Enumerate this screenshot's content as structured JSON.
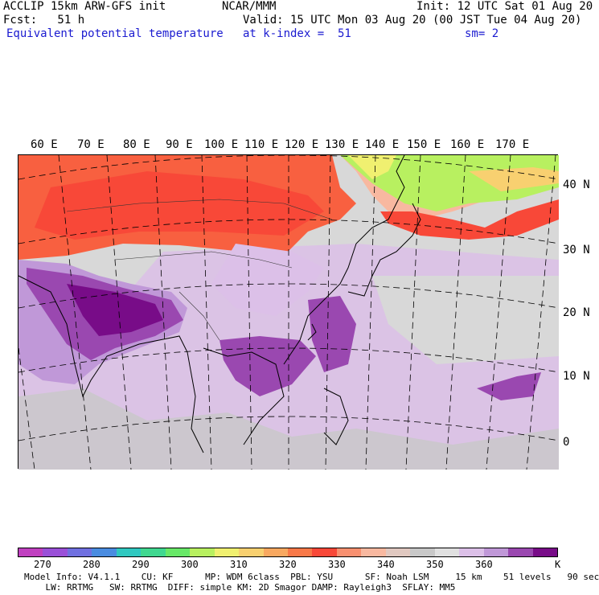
{
  "header": {
    "model": "ACCLIP 15km ARW-GFS init",
    "org": "NCAR/MMM",
    "init": "Init: 12 UTC Sat 01 Aug 20",
    "fcst": "Fcst:   51 h",
    "valid": "Valid: 15 UTC Mon 03 Aug 20 (00 JST Tue 04 Aug 20)",
    "field": "Equivalent potential temperature",
    "level": "at k-index =  51",
    "smooth": "sm= 2"
  },
  "longitude_labels": [
    "60 E",
    "70 E",
    "80 E",
    "90 E",
    "100 E",
    "110 E",
    "120 E",
    "130 E",
    "140 E",
    "150 E",
    "160 E",
    "170 E"
  ],
  "latitude_labels": [
    "40 N",
    "30 N",
    "20 N",
    "10 N",
    "0"
  ],
  "colorbar": {
    "unit": "K",
    "ticks": [
      "270",
      "280",
      "290",
      "300",
      "310",
      "320",
      "330",
      "340",
      "350",
      "360"
    ],
    "colors": [
      "#c040c0",
      "#9a50d8",
      "#7070e0",
      "#4a8ce0",
      "#30c8c0",
      "#40d890",
      "#68e868",
      "#b8f060",
      "#f0f070",
      "#f8d070",
      "#f8a860",
      "#f87848",
      "#f84838",
      "#f89070",
      "#f8b8a0",
      "#e0c8c0",
      "#c8c8c8",
      "#e0e0e0",
      "#dcc0e8",
      "#c098d8",
      "#9a48b0",
      "#780c88"
    ]
  },
  "footer": {
    "line1": "Model Info: V4.1.1    CU: KF      MP: WDM 6class  PBL: YSU      SF: Noah LSM     15 km    51 levels   90 sec",
    "line2": "    LW: RRTMG   SW: RRTMG  DIFF: simple KM: 2D Smagor DAMP: Rayleigh3  SFLAY: MM5"
  }
}
